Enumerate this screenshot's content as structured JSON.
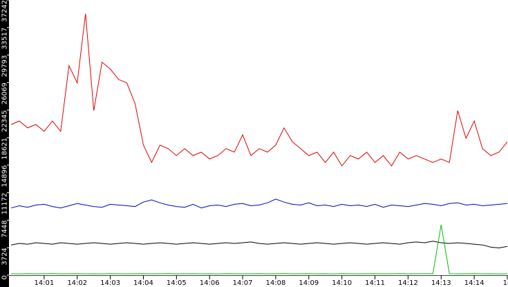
{
  "chart_data": {
    "type": "line",
    "x": [
      840,
      840.25,
      840.5,
      840.75,
      841,
      841.25,
      841.5,
      841.75,
      842,
      842.25,
      842.5,
      842.75,
      843,
      843.25,
      843.5,
      843.75,
      844,
      844.25,
      844.5,
      844.75,
      845,
      845.25,
      845.5,
      845.75,
      846,
      846.25,
      846.5,
      846.75,
      847,
      847.25,
      847.5,
      847.75,
      848,
      848.25,
      848.5,
      848.75,
      849,
      849.25,
      849.5,
      849.75,
      850,
      850.25,
      850.5,
      850.75,
      851,
      851.25,
      851.5,
      851.75,
      852,
      852.25,
      852.5,
      852.75,
      853,
      853.25,
      853.5,
      853.75,
      854,
      854.25,
      854.5,
      854.75,
      855
    ],
    "series": [
      {
        "color": "#e00000",
        "values": [
          20400,
          20870,
          19940,
          20400,
          19470,
          20870,
          19470,
          28360,
          26020,
          35380,
          22280,
          28830,
          27890,
          26490,
          26020,
          23210,
          17600,
          15260,
          17600,
          17130,
          16190,
          17130,
          16190,
          16660,
          15730,
          16190,
          17130,
          16660,
          19000,
          16190,
          17130,
          16660,
          17600,
          19940,
          18070,
          17130,
          16190,
          16660,
          15260,
          16660,
          14790,
          16190,
          15730,
          16660,
          15260,
          16190,
          14790,
          16660,
          15730,
          16190,
          15730,
          15260,
          15730,
          15260,
          22280,
          18530,
          20870,
          17130,
          16190,
          16660,
          18070
        ]
      },
      {
        "color": "#0000c0",
        "values": [
          9100,
          9400,
          9200,
          9500,
          9600,
          9300,
          9100,
          9400,
          9700,
          9500,
          9300,
          9200,
          9600,
          9500,
          9400,
          9300,
          9900,
          10200,
          9800,
          9500,
          9300,
          9200,
          9600,
          9100,
          9400,
          9500,
          9300,
          9600,
          9700,
          9400,
          9500,
          9800,
          10300,
          9900,
          9600,
          9500,
          9800,
          9400,
          9500,
          9300,
          9600,
          9400,
          9500,
          9300,
          9600,
          9200,
          9500,
          9400,
          9300,
          9500,
          9700,
          9600,
          9400,
          9700,
          9800,
          9500,
          9600,
          9400,
          9500,
          9600,
          9700
        ]
      },
      {
        "color": "#000000",
        "values": [
          4100,
          4300,
          4200,
          4400,
          4300,
          4200,
          4400,
          4300,
          4200,
          4300,
          4400,
          4300,
          4200,
          4300,
          4400,
          4300,
          4200,
          4300,
          4400,
          4300,
          4200,
          4300,
          4400,
          4300,
          4200,
          4300,
          4400,
          4300,
          4400,
          4500,
          4300,
          4200,
          4300,
          4400,
          4300,
          4200,
          4300,
          4400,
          4300,
          4200,
          4300,
          4400,
          4300,
          4200,
          4300,
          4400,
          4300,
          4200,
          4400,
          4500,
          4400,
          4600,
          4400,
          4300,
          4400,
          4300,
          4200,
          4100,
          3800,
          3700,
          3900
        ]
      },
      {
        "color": "#00c000",
        "values": [
          200,
          180,
          210,
          190,
          200,
          220,
          190,
          200,
          210,
          190,
          200,
          180,
          210,
          200,
          190,
          200,
          210,
          190,
          200,
          220,
          190,
          200,
          210,
          190,
          200,
          180,
          210,
          200,
          190,
          200,
          210,
          190,
          200,
          220,
          190,
          200,
          210,
          190,
          200,
          180,
          210,
          200,
          190,
          200,
          210,
          190,
          200,
          220,
          190,
          200,
          210,
          200,
          6830,
          200,
          190,
          200,
          210,
          190,
          200,
          180,
          200
        ]
      }
    ],
    "xlim": [
      840,
      855
    ],
    "xticks": [
      {
        "value": 841,
        "label": "14:01"
      },
      {
        "value": 842,
        "label": "14:02"
      },
      {
        "value": 843,
        "label": "14:03"
      },
      {
        "value": 844,
        "label": "14:04"
      },
      {
        "value": 845,
        "label": "14:05"
      },
      {
        "value": 846,
        "label": "14:06"
      },
      {
        "value": 847,
        "label": "14:07"
      },
      {
        "value": 848,
        "label": "14:08"
      },
      {
        "value": 849,
        "label": "14:09"
      },
      {
        "value": 850,
        "label": "14:10"
      },
      {
        "value": 851,
        "label": "14:11"
      },
      {
        "value": 852,
        "label": "14:12"
      },
      {
        "value": 853,
        "label": "14:13"
      },
      {
        "value": 854,
        "label": "14:14"
      },
      {
        "value": 855,
        "label": "14"
      }
    ],
    "ylim": [
      0,
      37242
    ],
    "yticks": [
      0,
      3724,
      7448,
      11172,
      14896,
      18621,
      22345,
      26069,
      29793,
      33517,
      37242
    ]
  }
}
